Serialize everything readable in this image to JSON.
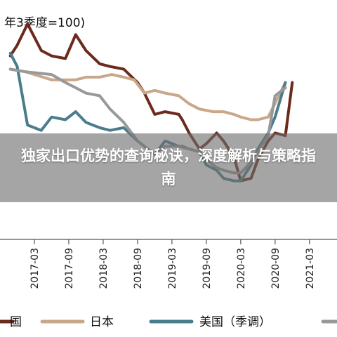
{
  "banner": {
    "headline": "独家出口优势的查询秘诀，深度解析与策略指南"
  },
  "chart_data": {
    "type": "line",
    "title": "年3季度=100)",
    "categories": [
      "2017-03",
      "2017-09",
      "2018-03",
      "2018-09",
      "2019-03",
      "2019-09",
      "2020-03",
      "2020-09",
      "2021-03"
    ],
    "x_index_range": [
      -2,
      17.6
    ],
    "ylim": [
      -2.1,
      6.9
    ],
    "grid": false,
    "legend_position": "bottom",
    "series": [
      {
        "name": "国",
        "color": "#6b2a1c",
        "values": [
          [
            -1.4,
            4.8
          ],
          [
            -1,
            5.2
          ],
          [
            -0.4,
            6.0
          ],
          [
            0.4,
            5.0
          ],
          [
            1,
            4.8
          ],
          [
            1.8,
            4.7
          ],
          [
            2.4,
            5.6
          ],
          [
            3,
            5.0
          ],
          [
            3.8,
            4.5
          ],
          [
            4.4,
            4.4
          ],
          [
            5.2,
            4.3
          ],
          [
            6,
            3.8
          ],
          [
            6.4,
            3.4
          ],
          [
            7,
            2.6
          ],
          [
            7.6,
            2.7
          ],
          [
            8.4,
            2.6
          ],
          [
            8.6,
            2.4
          ],
          [
            9,
            1.9
          ],
          [
            9.6,
            1.3
          ],
          [
            10,
            1.5
          ],
          [
            10.6,
            1.9
          ],
          [
            11,
            1.6
          ],
          [
            11.6,
            1.0
          ],
          [
            12,
            0.1
          ],
          [
            12.6,
            0.2
          ],
          [
            13,
            0.9
          ],
          [
            13.6,
            1.6
          ],
          [
            14,
            1.9
          ],
          [
            14.6,
            1.8
          ],
          [
            15,
            3.8
          ]
        ]
      },
      {
        "name": "日本",
        "color": "#c9a78a",
        "values": [
          [
            -1.4,
            4.3
          ],
          [
            -0.5,
            4.2
          ],
          [
            1,
            3.9
          ],
          [
            1.8,
            3.9
          ],
          [
            2.4,
            3.9
          ],
          [
            3,
            4.0
          ],
          [
            3.8,
            4.0
          ],
          [
            4.5,
            4.1
          ],
          [
            5.2,
            4.0
          ],
          [
            5.8,
            3.9
          ],
          [
            6.4,
            3.4
          ],
          [
            7,
            3.5
          ],
          [
            7.6,
            3.4
          ],
          [
            8.4,
            3.3
          ],
          [
            9,
            3.0
          ],
          [
            9.6,
            2.8
          ],
          [
            10.4,
            2.7
          ],
          [
            11,
            2.7
          ],
          [
            11.6,
            2.6
          ],
          [
            12,
            2.5
          ],
          [
            12.6,
            2.4
          ],
          [
            13,
            2.4
          ],
          [
            13.6,
            2.5
          ],
          [
            14.6,
            3.8
          ]
        ]
      },
      {
        "name": "美国（季调）",
        "color": "#4a7d8c",
        "values": [
          [
            -1.4,
            4.9
          ],
          [
            -1,
            4.4
          ],
          [
            -0.4,
            2.2
          ],
          [
            0.4,
            2.0
          ],
          [
            1,
            2.5
          ],
          [
            1.8,
            2.4
          ],
          [
            2.4,
            2.7
          ],
          [
            3,
            2.3
          ],
          [
            3.8,
            2.1
          ],
          [
            4.4,
            2.0
          ],
          [
            5.2,
            2.1
          ],
          [
            6,
            1.6
          ],
          [
            6.4,
            1.4
          ],
          [
            7,
            1.1
          ],
          [
            7.6,
            1.6
          ],
          [
            8.4,
            1.4
          ],
          [
            8.6,
            1.4
          ],
          [
            9,
            1.3
          ],
          [
            9.6,
            1.2
          ],
          [
            10,
            0.7
          ],
          [
            10.6,
            0.5
          ],
          [
            11,
            0.2
          ],
          [
            11.6,
            0.1
          ],
          [
            12,
            0.1
          ],
          [
            12.6,
            0.7
          ],
          [
            13,
            1.3
          ],
          [
            13.6,
            1.9
          ],
          [
            14,
            2.5
          ],
          [
            14.6,
            3.8
          ]
        ]
      },
      {
        "name": "",
        "color": "#999999",
        "values": [
          [
            -1.4,
            4.3
          ],
          [
            -0.5,
            4.2
          ],
          [
            1,
            4.1
          ],
          [
            1.8,
            3.8
          ],
          [
            2.4,
            3.6
          ],
          [
            3,
            3.4
          ],
          [
            3.8,
            3.3
          ],
          [
            4.4,
            2.8
          ],
          [
            5.2,
            2.3
          ],
          [
            6,
            1.6
          ],
          [
            6.4,
            1.4
          ],
          [
            7,
            1.1
          ],
          [
            7.6,
            1.4
          ],
          [
            8.4,
            1.4
          ],
          [
            9,
            1.3
          ],
          [
            9.6,
            1.2
          ],
          [
            10,
            0.9
          ],
          [
            10.6,
            0.6
          ],
          [
            11,
            0.5
          ],
          [
            11.6,
            0.4
          ],
          [
            12,
            0.4
          ],
          [
            12.6,
            0.8
          ],
          [
            13,
            1.2
          ],
          [
            13.6,
            1.8
          ],
          [
            14,
            3.3
          ],
          [
            14.6,
            3.6
          ]
        ]
      }
    ]
  },
  "legend": {
    "items": [
      {
        "label": "国",
        "color": "#6b2a1c"
      },
      {
        "label": "日本",
        "color": "#c9a78a"
      },
      {
        "label": "美国（季调）",
        "color": "#4a7d8c"
      },
      {
        "label": "",
        "color": "#999999"
      }
    ]
  }
}
